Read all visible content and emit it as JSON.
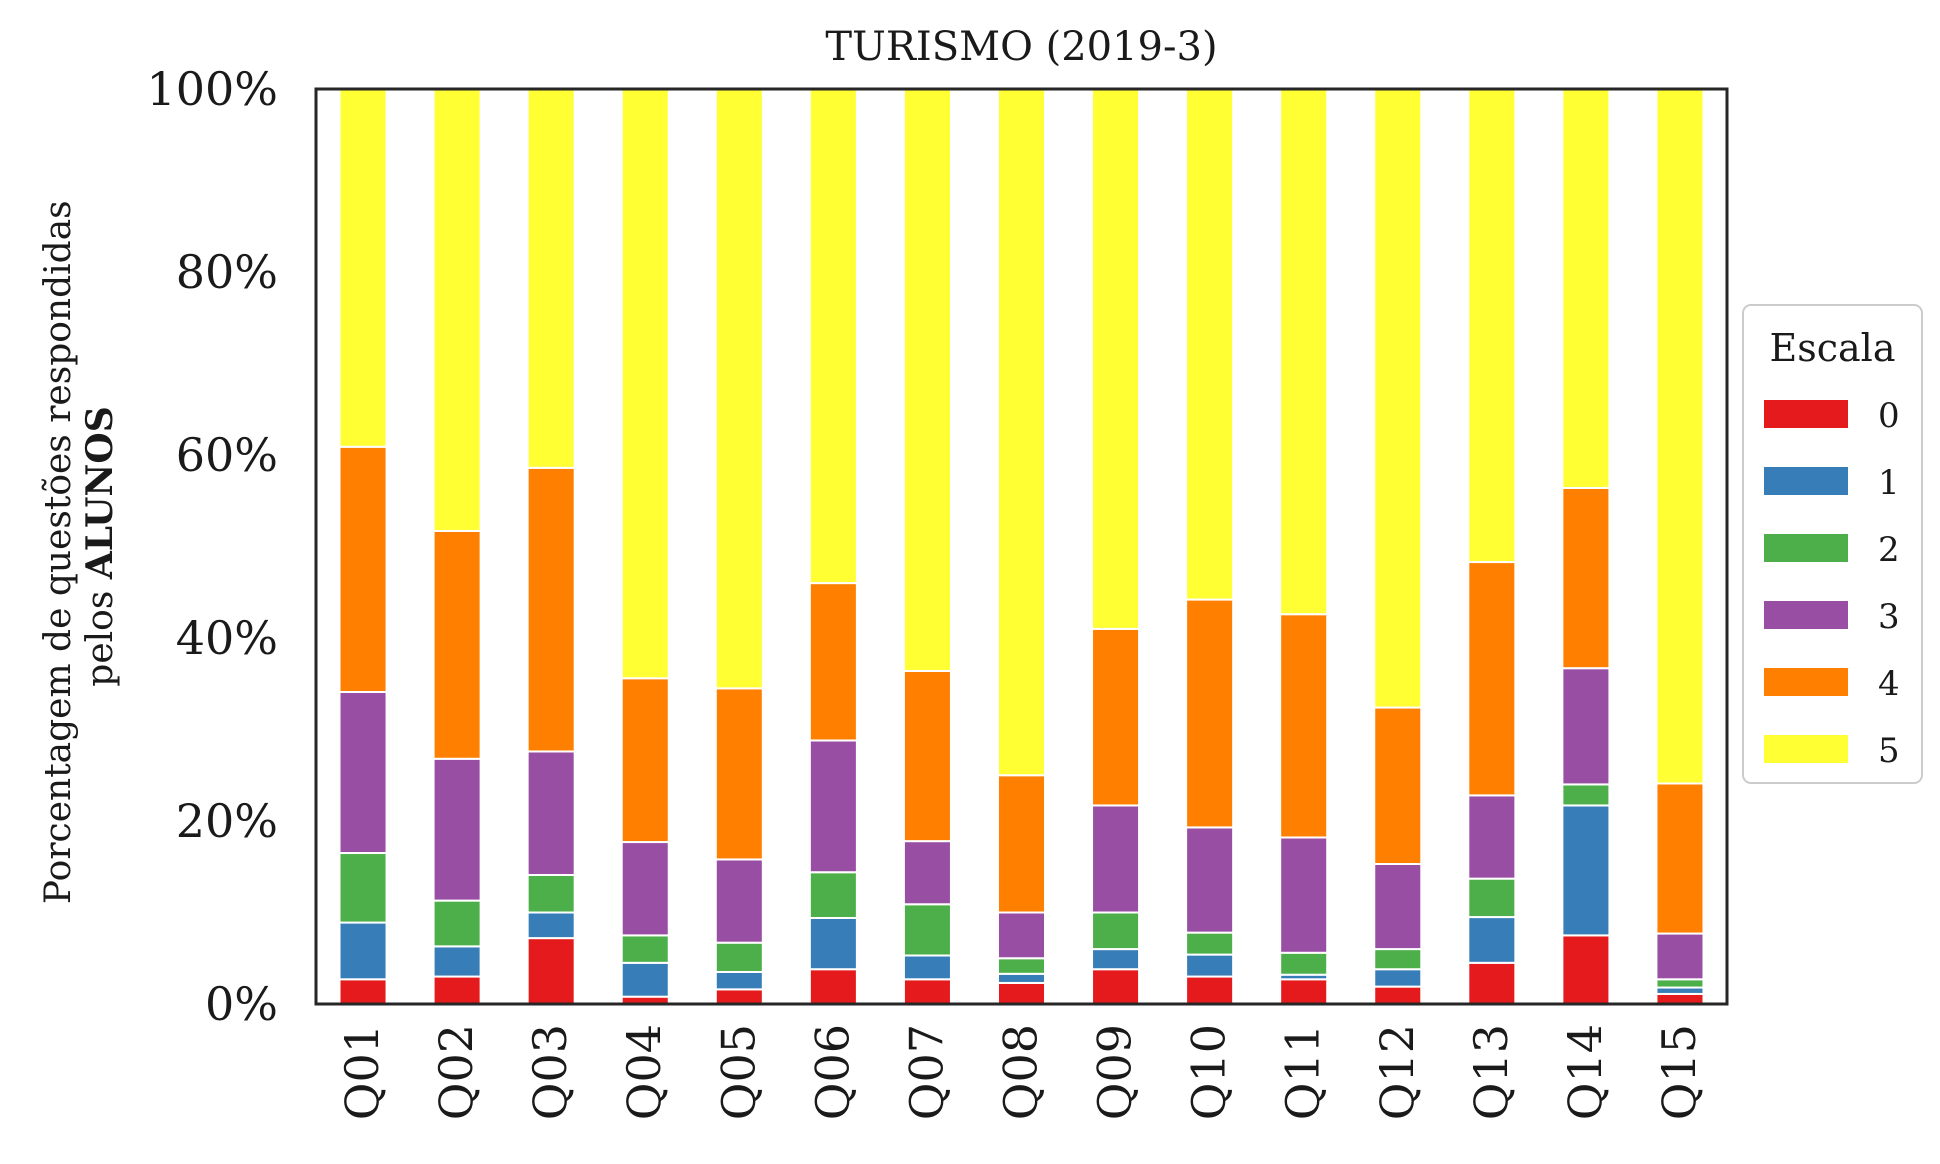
{
  "chart_data": {
    "type": "bar",
    "stacked": true,
    "title": "TURISMO (2019-3)",
    "ylabel": "Porcentagem de questões respondidas",
    "ylabel_line2_prefix": "pelos ",
    "ylabel_line2_bold": "ALUNOS",
    "xlabel": "",
    "ylim": [
      0,
      100
    ],
    "yticks": [
      "0%",
      "20%",
      "40%",
      "60%",
      "80%",
      "100%"
    ],
    "ytick_values": [
      0,
      20,
      40,
      60,
      80,
      100
    ],
    "categories": [
      "Q01",
      "Q02",
      "Q03",
      "Q04",
      "Q05",
      "Q06",
      "Q07",
      "Q08",
      "Q09",
      "Q10",
      "Q11",
      "Q12",
      "Q13",
      "Q14",
      "Q15"
    ],
    "grid": false,
    "legend": {
      "title": "Escala",
      "placement": "right"
    },
    "series": [
      {
        "name": "0",
        "color": "#e41a1c",
        "values": [
          2.7,
          3.0,
          7.2,
          0.8,
          1.6,
          3.8,
          2.7,
          2.3,
          3.8,
          3.0,
          2.7,
          1.9,
          4.5,
          7.5,
          1.1
        ]
      },
      {
        "name": "1",
        "color": "#377eb8",
        "values": [
          6.2,
          3.3,
          2.8,
          3.7,
          1.9,
          5.6,
          2.6,
          1.0,
          2.2,
          2.4,
          0.5,
          1.9,
          5.0,
          14.2,
          0.7
        ]
      },
      {
        "name": "2",
        "color": "#4daf4a",
        "values": [
          7.6,
          5.0,
          4.1,
          3.0,
          3.2,
          5.0,
          5.6,
          1.7,
          4.0,
          2.4,
          2.4,
          2.2,
          4.2,
          2.3,
          0.9
        ]
      },
      {
        "name": "3",
        "color": "#984ea3",
        "values": [
          17.6,
          15.5,
          13.5,
          10.2,
          9.1,
          14.4,
          6.9,
          5.0,
          11.7,
          11.5,
          12.6,
          9.3,
          9.1,
          12.7,
          5.0
        ]
      },
      {
        "name": "4",
        "color": "#ff7f00",
        "values": [
          26.8,
          24.9,
          31.0,
          17.9,
          18.7,
          17.2,
          18.6,
          15.0,
          19.3,
          24.9,
          24.4,
          17.1,
          25.5,
          19.7,
          16.4
        ]
      },
      {
        "name": "5",
        "color": "#ffff33",
        "values": [
          39.1,
          48.3,
          41.4,
          64.4,
          65.5,
          54.0,
          63.6,
          75.0,
          59.0,
          55.8,
          57.4,
          67.6,
          51.7,
          43.6,
          75.9
        ]
      }
    ]
  }
}
